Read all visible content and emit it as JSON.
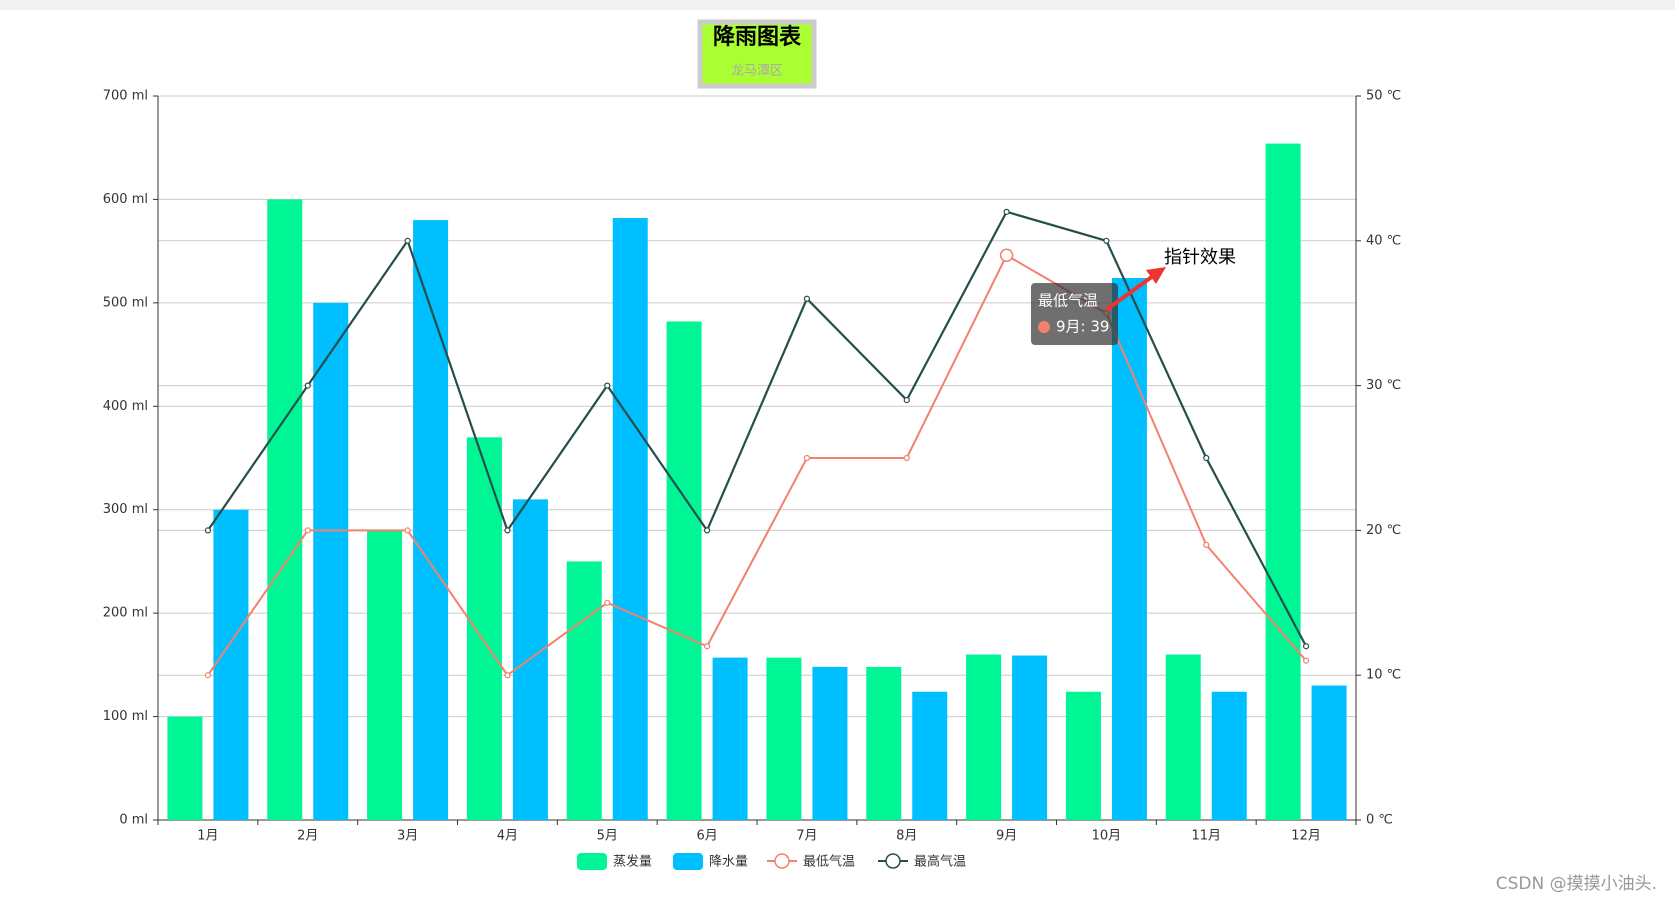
{
  "chart_data": {
    "type": "bar-line",
    "title": "降雨图表",
    "subtitle": "龙马潭区",
    "categories": [
      "1月",
      "2月",
      "3月",
      "4月",
      "5月",
      "6月",
      "7月",
      "8月",
      "9月",
      "10月",
      "11月",
      "12月"
    ],
    "series": [
      {
        "name": "蒸发量",
        "type": "bar",
        "color": "#00f694",
        "values": [
          100,
          600,
          280,
          370,
          250,
          482,
          157,
          148,
          160,
          124,
          160,
          654
        ]
      },
      {
        "name": "降水量",
        "type": "bar",
        "color": "#00bfff",
        "values": [
          300,
          500,
          580,
          310,
          582,
          157,
          148,
          124,
          159,
          524,
          124,
          130
        ]
      },
      {
        "name": "最低气温",
        "type": "line",
        "axis": "y2",
        "color": "#f4806e",
        "values": [
          10,
          20,
          20,
          10,
          15,
          12,
          25,
          25,
          39,
          35,
          19,
          11
        ]
      },
      {
        "name": "最高气温",
        "type": "line",
        "axis": "y2",
        "color": "#254e4d",
        "values": [
          20,
          30,
          40,
          20,
          30,
          20,
          36,
          29,
          42,
          40,
          25,
          12
        ]
      }
    ],
    "ylim": [
      0,
      700
    ],
    "yticks": [
      {
        "value": 0,
        "label": "0 ml"
      },
      {
        "value": 100,
        "label": "100 ml"
      },
      {
        "value": 200,
        "label": "200 ml"
      },
      {
        "value": 300,
        "label": "300 ml"
      },
      {
        "value": 400,
        "label": "400 ml"
      },
      {
        "value": 500,
        "label": "500 ml"
      },
      {
        "value": 600,
        "label": "600 ml"
      },
      {
        "value": 700,
        "label": "700 ml"
      }
    ],
    "y2lim": [
      0,
      50
    ],
    "y2ticks": [
      {
        "value": 0,
        "label": "0 ℃"
      },
      {
        "value": 10,
        "label": "10 ℃"
      },
      {
        "value": 20,
        "label": "20 ℃"
      },
      {
        "value": 30,
        "label": "30 ℃"
      },
      {
        "value": 40,
        "label": "40 ℃"
      },
      {
        "value": 50,
        "label": "50 ℃"
      }
    ],
    "grid": true,
    "legend": "bottom",
    "tooltip": {
      "title": "最低气温",
      "text": "9月: 39"
    },
    "annotation": "指针效果",
    "watermark": "CSDN @摸摸小油头."
  }
}
